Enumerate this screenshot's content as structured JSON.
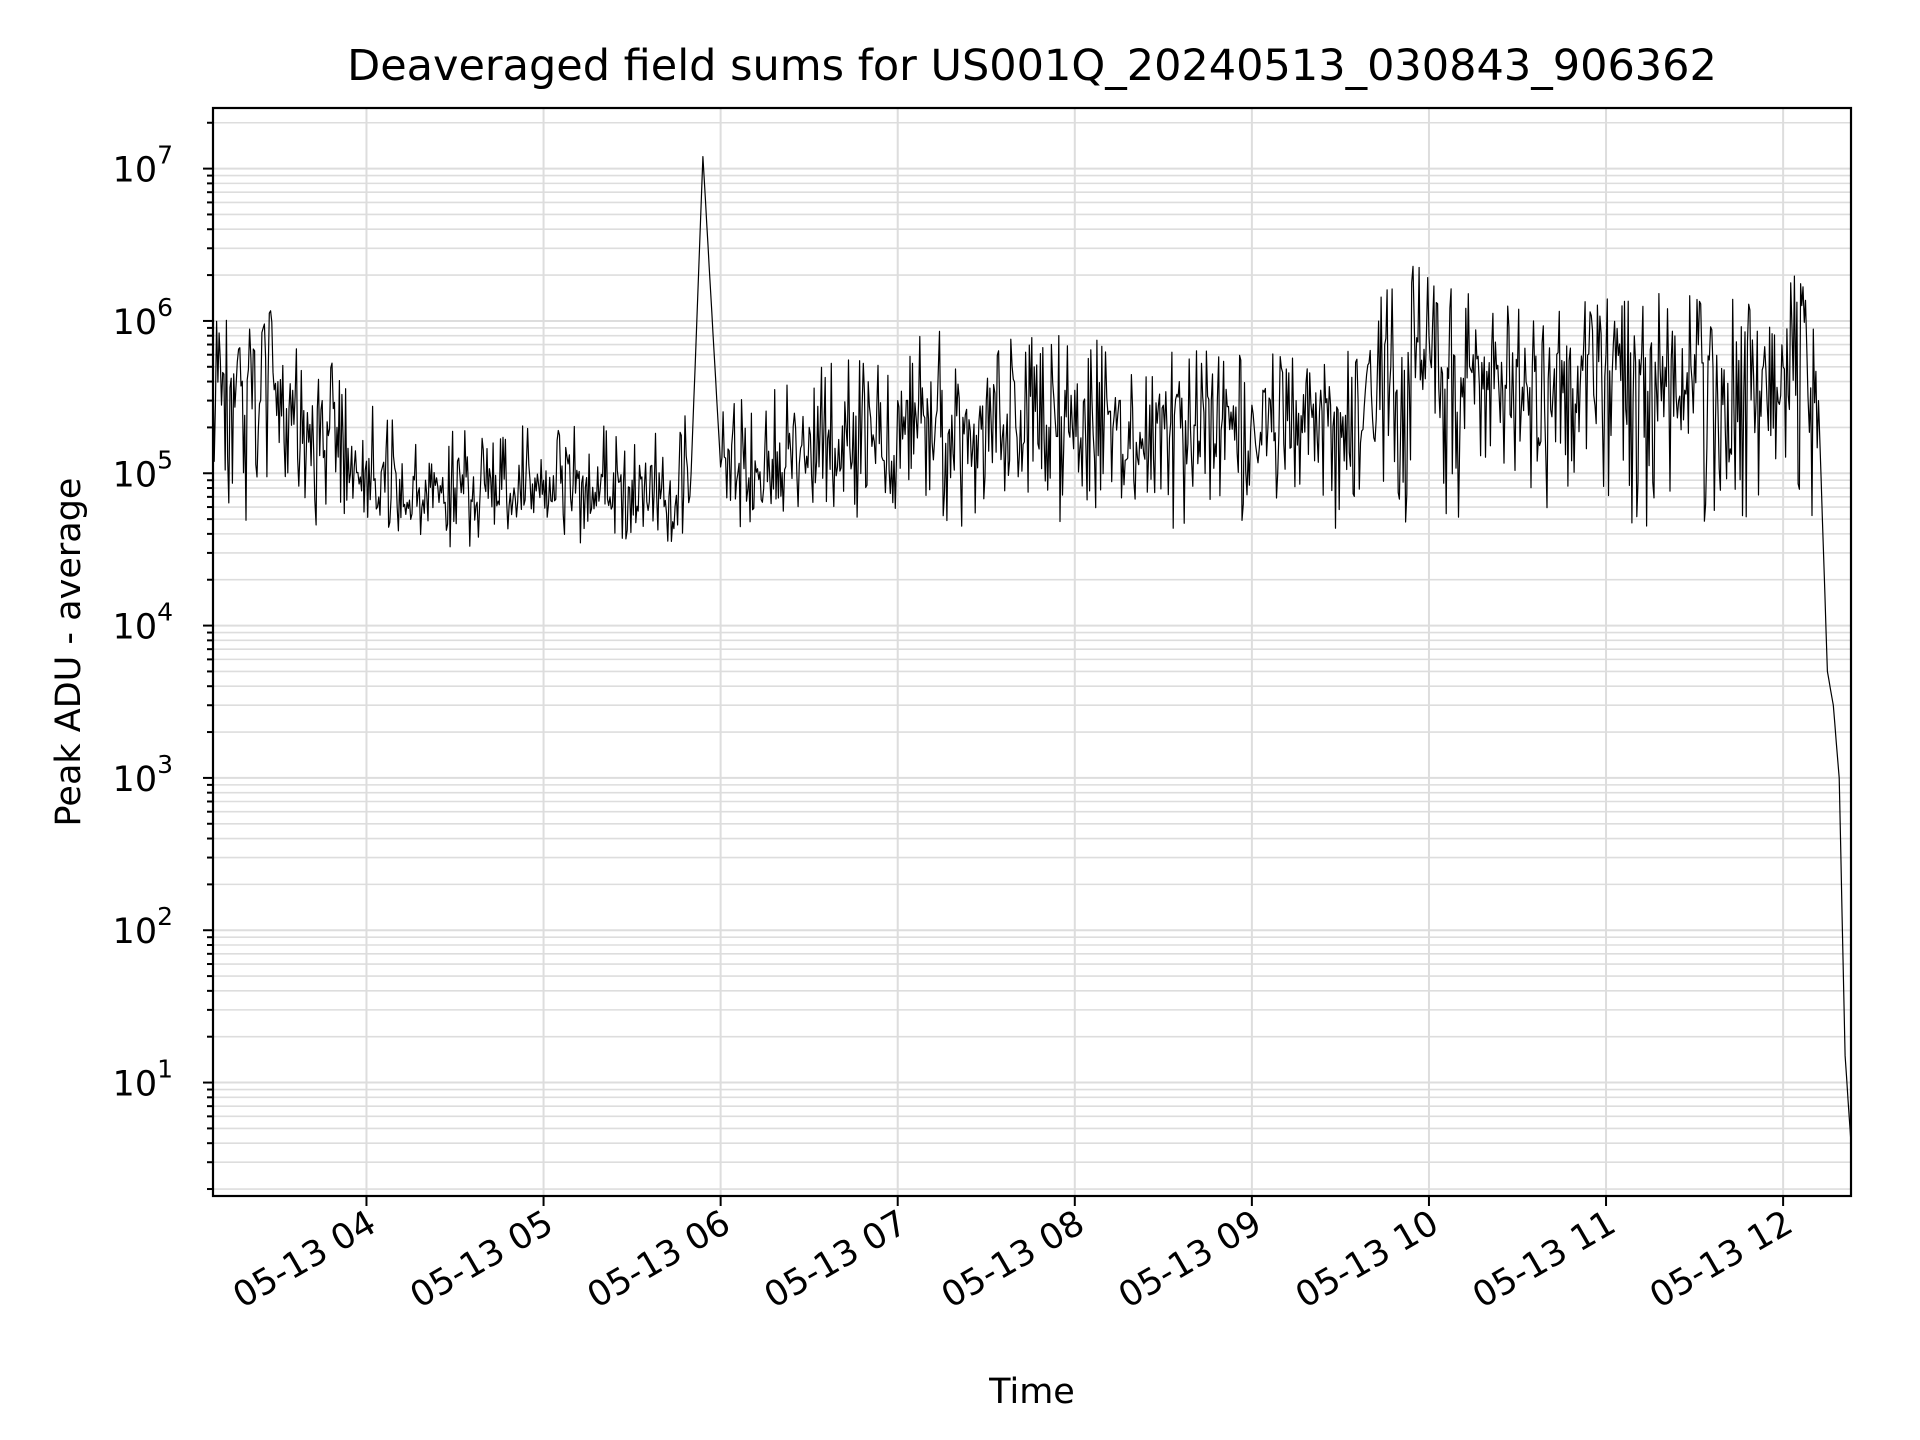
{
  "chart_data": {
    "type": "line",
    "title": "Deaveraged field sums for US001Q_20240513_030843_906362",
    "xlabel": "Time",
    "ylabel": "Peak ADU - average",
    "yscale": "log",
    "xlim": [
      "2024-05-13 03:08",
      "2024-05-13 12:23"
    ],
    "ylim": [
      1.8,
      25000000
    ],
    "grid": true,
    "line_color": "#000000",
    "x_ticks": [
      "05-13 04",
      "05-13 05",
      "05-13 06",
      "05-13 07",
      "05-13 08",
      "05-13 09",
      "05-13 10",
      "05-13 11",
      "05-13 12"
    ],
    "y_ticks": [
      {
        "base": "10",
        "exp": "1"
      },
      {
        "base": "10",
        "exp": "2"
      },
      {
        "base": "10",
        "exp": "3"
      },
      {
        "base": "10",
        "exp": "4"
      },
      {
        "base": "10",
        "exp": "5"
      },
      {
        "base": "10",
        "exp": "6"
      },
      {
        "base": "10",
        "exp": "7"
      }
    ],
    "series": [
      {
        "x": [
          "2024-05-13 03:08",
          "2024-05-13 03:15",
          "2024-05-13 03:20",
          "2024-05-13 03:25",
          "2024-05-13 03:30",
          "2024-05-13 03:35",
          "2024-05-13 03:40",
          "2024-05-13 03:45",
          "2024-05-13 03:50",
          "2024-05-13 03:55",
          "2024-05-13 04:00",
          "2024-05-13 04:10",
          "2024-05-13 04:20",
          "2024-05-13 04:30",
          "2024-05-13 04:40",
          "2024-05-13 04:50",
          "2024-05-13 05:00",
          "2024-05-13 05:10",
          "2024-05-13 05:20",
          "2024-05-13 05:30",
          "2024-05-13 05:40",
          "2024-05-13 05:50",
          "2024-05-13 05:54",
          "2024-05-13 06:00",
          "2024-05-13 06:15",
          "2024-05-13 06:30",
          "2024-05-13 06:45",
          "2024-05-13 07:00",
          "2024-05-13 07:15",
          "2024-05-13 07:30",
          "2024-05-13 07:45",
          "2024-05-13 08:00",
          "2024-05-13 08:15",
          "2024-05-13 08:30",
          "2024-05-13 08:45",
          "2024-05-13 09:00",
          "2024-05-13 09:15",
          "2024-05-13 09:30",
          "2024-05-13 09:36",
          "2024-05-13 09:45",
          "2024-05-13 09:55",
          "2024-05-13 10:00",
          "2024-05-13 10:15",
          "2024-05-13 10:30",
          "2024-05-13 10:45",
          "2024-05-13 11:00",
          "2024-05-13 11:15",
          "2024-05-13 11:30",
          "2024-05-13 11:45",
          "2024-05-13 12:00",
          "2024-05-13 12:03",
          "2024-05-13 12:08",
          "2024-05-13 12:12",
          "2024-05-13 12:15",
          "2024-05-13 12:17",
          "2024-05-13 12:19",
          "2024-05-13 12:21",
          "2024-05-13 12:23"
        ],
        "y": [
          500000,
          450000,
          480000,
          900000,
          400000,
          350000,
          250000,
          300000,
          200000,
          150000,
          120000,
          100000,
          90000,
          80000,
          85000,
          80000,
          90000,
          85000,
          95000,
          90000,
          80000,
          100000,
          12000000,
          110000,
          150000,
          200000,
          250000,
          300000,
          350000,
          300000,
          320000,
          350000,
          300000,
          280000,
          320000,
          280000,
          300000,
          250000,
          300000,
          700000,
          1000000,
          800000,
          600000,
          500000,
          550000,
          600000,
          650000,
          600000,
          550000,
          500000,
          900000,
          700000,
          300000,
          5000,
          3000,
          1000,
          15,
          4
        ]
      }
    ]
  }
}
